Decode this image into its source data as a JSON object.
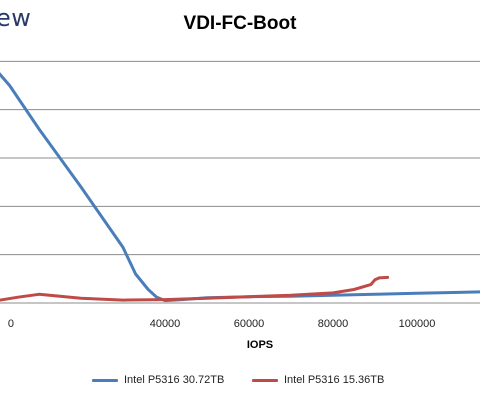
{
  "brand": {
    "text": "ew"
  },
  "chart_data": {
    "type": "line",
    "title": "VDI-FC-Boot",
    "xlabel": "IOPS",
    "ylabel": "",
    "xlim": [
      0,
      115000
    ],
    "ylim": [
      0,
      6
    ],
    "x_ticks": [
      0,
      40000,
      60000,
      80000,
      100000
    ],
    "x_tick_labels": [
      "0",
      "40000",
      "60000",
      "80000",
      "100000"
    ],
    "y_gridlines": [
      1,
      2,
      3,
      4,
      5
    ],
    "grid": true,
    "legend_position": "bottom",
    "series": [
      {
        "name": "Intel P5316 30.72TB",
        "color": "#4a7ebb",
        "points": [
          [
            0,
            4.8
          ],
          [
            3000,
            4.5
          ],
          [
            10000,
            3.6
          ],
          [
            20000,
            2.4
          ],
          [
            30000,
            1.15
          ],
          [
            33000,
            0.6
          ],
          [
            36000,
            0.28
          ],
          [
            38000,
            0.12
          ],
          [
            40000,
            0.05
          ],
          [
            44000,
            0.07
          ],
          [
            50000,
            0.11
          ],
          [
            60000,
            0.13
          ],
          [
            70000,
            0.14
          ],
          [
            80000,
            0.16
          ],
          [
            90000,
            0.18
          ],
          [
            100000,
            0.2
          ],
          [
            110000,
            0.22
          ],
          [
            115000,
            0.23
          ]
        ]
      },
      {
        "name": "Intel P5316 15.36TB",
        "color": "#be4b48",
        "points": [
          [
            0,
            0.05
          ],
          [
            5000,
            0.12
          ],
          [
            10000,
            0.18
          ],
          [
            15000,
            0.14
          ],
          [
            20000,
            0.1
          ],
          [
            30000,
            0.06
          ],
          [
            40000,
            0.07
          ],
          [
            50000,
            0.1
          ],
          [
            60000,
            0.13
          ],
          [
            70000,
            0.16
          ],
          [
            80000,
            0.21
          ],
          [
            85000,
            0.28
          ],
          [
            89000,
            0.38
          ],
          [
            90000,
            0.48
          ],
          [
            91000,
            0.52
          ],
          [
            93000,
            0.53
          ]
        ]
      }
    ]
  }
}
